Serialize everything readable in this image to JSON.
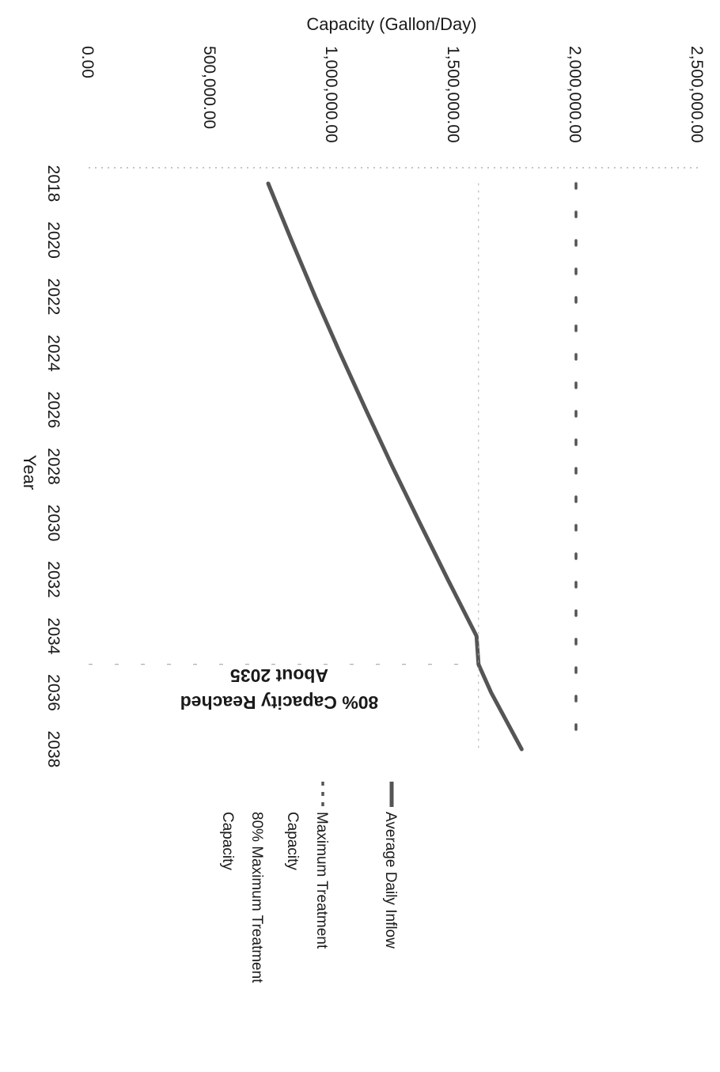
{
  "chart_data": {
    "type": "line",
    "orientation": "rotated 90° clockwise",
    "title": "",
    "ylabel": "Capacity (Gallon/Day)",
    "xlabel": "Year",
    "ylim": [
      0,
      2500000
    ],
    "xlim": [
      2018,
      2038
    ],
    "y_ticks": [
      "0.00",
      "500,000.00",
      "1,000,000.00",
      "1,500,000.00",
      "2,000,000.00",
      "2,500,000.00"
    ],
    "x_ticks": [
      "2018",
      "2020",
      "2022",
      "2024",
      "2026",
      "2028",
      "2030",
      "2032",
      "2034",
      "2036",
      "2038"
    ],
    "grid": "horizontal dotted",
    "legend_position": "right",
    "series": [
      {
        "name": "Average Daily Inflow",
        "style": "solid",
        "color": "#555555",
        "x": [
          2018,
          2020,
          2022,
          2024,
          2026,
          2028,
          2030,
          2032,
          2034,
          2035,
          2036,
          2038
        ],
        "values": [
          737000,
          832000,
          930000,
          1032000,
          1138000,
          1246000,
          1359000,
          1474000,
          1592000,
          1600000,
          1652000,
          1777000
        ]
      },
      {
        "name": "Maximum Treatment Capacity",
        "style": "dashed",
        "color": "#555555",
        "x": [
          2018,
          2038
        ],
        "values": [
          2000000,
          2000000
        ]
      },
      {
        "name": "80% Maximum Treatment Capacity",
        "style": "dotted",
        "color": "#aaaaaa",
        "x": [
          2018,
          2038
        ],
        "values": [
          1600000,
          1600000
        ]
      }
    ],
    "annotation": {
      "line1": "80% Capacity Reached",
      "line2": "About 2035",
      "x": 2035
    }
  }
}
